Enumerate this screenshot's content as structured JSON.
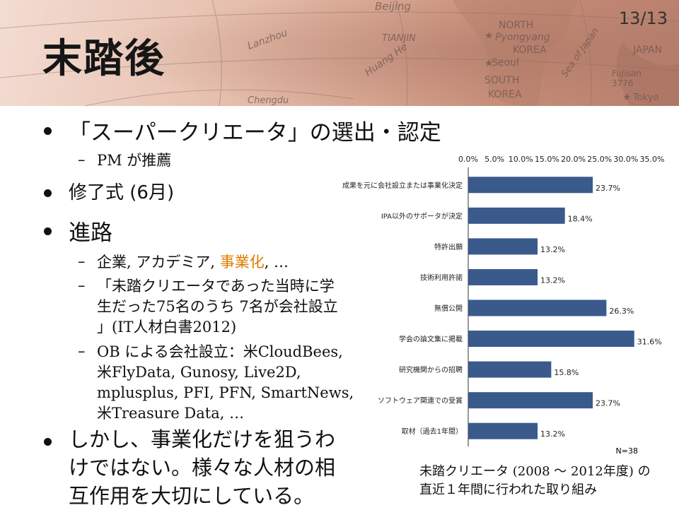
{
  "slide": {
    "title": "末踏後",
    "page": "13/13"
  },
  "map_labels": [
    "Beijing",
    "TIANJIN",
    "NORTH",
    "Pyongyang",
    "KOREA",
    "JAPAN",
    "Seoul",
    "SOUTH",
    "KOREA",
    "Lanzhou",
    "Huang He",
    "Chengdu",
    "Sea of Japan",
    "Fujisan",
    "3776",
    "Tokyo"
  ],
  "bullets": {
    "b1": "「スーパークリエータ」の選出・認定",
    "b1_sub": "PM が推薦",
    "b2": "修了式 (6月)",
    "b3": "進路",
    "b3_sub1_a": "企業, アカデミア, ",
    "b3_sub1_b": "事業化",
    "b3_sub1_c": ", …",
    "b3_sub2_l1": "「未踏クリエータであった当時に学",
    "b3_sub2_l2": "生だった75名のうち 7名が会社設立",
    "b3_sub2_l3": "」(IT人材白書2012)",
    "b3_sub3_l1": "OB による会社設立：米CloudBees,",
    "b3_sub3_l2": "米FlyData, Gunosy, Live2D,",
    "b3_sub3_l3": "mplusplus, PFI, PFN, SmartNews,",
    "b3_sub3_l4": "米Treasure Data, …",
    "b4_l1": "しかし、事業化だけを狙うわ",
    "b4_l2": "けではない。様々な人材の相",
    "b4_l3": "互作用を大切にしている。"
  },
  "caption": {
    "l1_a": "未踏クリエータ ",
    "l1_b": "(2008 〜 2012年度)",
    "l1_c": " の",
    "l2": "直近１年間に行われた取り組み"
  },
  "chart_data": {
    "type": "bar",
    "orientation": "horizontal",
    "categories": [
      "成果を元に会社設立または事業化決定",
      "IPA以外のサポータが決定",
      "特許出願",
      "技術利用許諾",
      "無償公開",
      "学会の論文集に掲載",
      "研究機関からの招聘",
      "ソフトウェア関連での受賞",
      "取材（過去1年間）"
    ],
    "values": [
      23.7,
      18.4,
      13.2,
      13.2,
      26.3,
      31.6,
      15.8,
      23.7,
      13.2
    ],
    "data_labels": [
      "23.7%",
      "18.4%",
      "13.2%",
      "13.2%",
      "26.3%",
      "31.6%",
      "15.8%",
      "23.7%",
      "13.2%"
    ],
    "x_ticks": [
      "0.0%",
      "5.0%",
      "10.0%",
      "15.0%",
      "20.0%",
      "25.0%",
      "30.0%",
      "35.0%"
    ],
    "xlim": [
      0,
      35
    ],
    "axis_position": "top",
    "note": "N=38",
    "bar_color": "#3a5a8c",
    "grid": false
  }
}
